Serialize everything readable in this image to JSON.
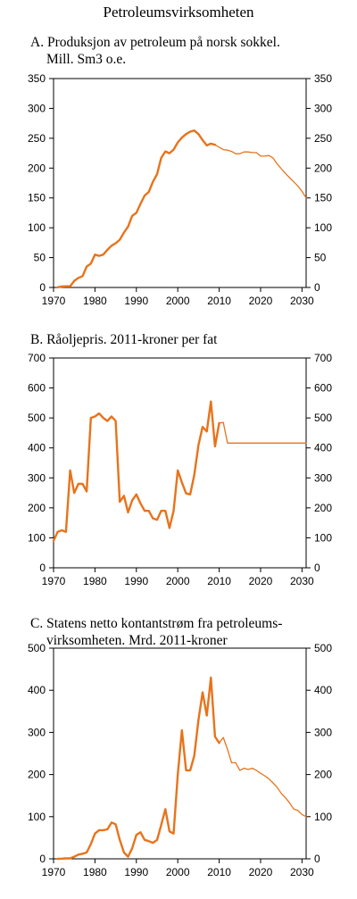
{
  "title": "Petroleumsvirksomheten",
  "colors": {
    "series": "#e8731b",
    "axis": "#000000"
  },
  "chart_data": [
    {
      "type": "line",
      "title_line1": "A. Produksjon av petroleum på norsk sokkel.",
      "title_line2": "Mill. Sm3 o.e.",
      "xlim": [
        1970,
        2031
      ],
      "ylim": [
        0,
        350
      ],
      "xticks": [
        1970,
        1980,
        1990,
        2000,
        2010,
        2020,
        2030
      ],
      "yticks": [
        0,
        50,
        100,
        150,
        200,
        250,
        300,
        350
      ],
      "grid": false,
      "series": [
        {
          "style": "historical",
          "x": [
            1971,
            1972,
            1973,
            1974,
            1975,
            1976,
            1977,
            1978,
            1979,
            1980,
            1981,
            1982,
            1983,
            1984,
            1985,
            1986,
            1987,
            1988,
            1989,
            1990,
            1991,
            1992,
            1993,
            1994,
            1995,
            1996,
            1997,
            1998,
            1999,
            2000,
            2001,
            2002,
            2003,
            2004,
            2005,
            2006,
            2007,
            2008,
            2009
          ],
          "y": [
            0.3,
            1.6,
            1.9,
            1.9,
            11,
            16,
            19,
            35,
            40,
            55,
            53,
            55,
            63,
            70,
            74,
            80,
            92,
            102,
            120,
            125,
            140,
            154,
            160,
            177,
            190,
            217,
            228,
            225,
            231,
            243,
            251,
            257,
            261,
            263,
            257,
            247,
            238,
            241,
            239
          ]
        },
        {
          "style": "projection",
          "x": [
            2009,
            2010,
            2011,
            2012,
            2013,
            2014,
            2015,
            2016,
            2017,
            2018,
            2019,
            2020,
            2021,
            2022,
            2023,
            2024,
            2025,
            2026,
            2027,
            2028,
            2029,
            2030,
            2031
          ],
          "y": [
            239,
            235,
            231,
            230,
            228,
            224,
            224,
            227,
            227,
            226,
            226,
            220,
            220,
            221,
            217,
            207,
            199,
            191,
            184,
            177,
            170,
            161,
            150
          ]
        }
      ]
    },
    {
      "type": "line",
      "title_line1": "B. Råoljepris. 2011-kroner per fat",
      "title_line2": "",
      "xlim": [
        1970,
        2031
      ],
      "ylim": [
        0,
        700
      ],
      "xticks": [
        1970,
        1980,
        1990,
        2000,
        2010,
        2020,
        2030
      ],
      "yticks": [
        0,
        100,
        200,
        300,
        400,
        500,
        600,
        700
      ],
      "grid": false,
      "series": [
        {
          "style": "historical",
          "x": [
            1970,
            1971,
            1972,
            1973,
            1974,
            1975,
            1976,
            1977,
            1978,
            1979,
            1980,
            1981,
            1982,
            1983,
            1984,
            1985,
            1986,
            1987,
            1988,
            1989,
            1990,
            1991,
            1992,
            1993,
            1994,
            1995,
            1996,
            1997,
            1998,
            1999,
            2000,
            2001,
            2002,
            2003,
            2004,
            2005,
            2006,
            2007,
            2008,
            2009,
            2010
          ],
          "y": [
            90,
            120,
            125,
            120,
            325,
            250,
            280,
            280,
            255,
            500,
            505,
            515,
            500,
            490,
            505,
            490,
            220,
            240,
            185,
            225,
            245,
            215,
            190,
            190,
            165,
            160,
            190,
            190,
            133,
            190,
            325,
            285,
            248,
            245,
            310,
            410,
            470,
            455,
            555,
            405,
            483
          ]
        },
        {
          "style": "projection",
          "x": [
            2010,
            2011,
            2012,
            2013,
            2031
          ],
          "y": [
            483,
            485,
            416,
            416,
            416
          ]
        }
      ]
    },
    {
      "type": "line",
      "title_line1": "C. Statens netto kontantstrøm fra petroleums-",
      "title_line2": "virksomheten. Mrd. 2011-kroner",
      "xlim": [
        1970,
        2031
      ],
      "ylim": [
        0,
        500
      ],
      "xticks": [
        1970,
        1980,
        1990,
        2000,
        2010,
        2020,
        2030
      ],
      "yticks": [
        0,
        100,
        200,
        300,
        400,
        500
      ],
      "grid": false,
      "series": [
        {
          "style": "historical",
          "x": [
            1971,
            1972,
            1973,
            1974,
            1975,
            1976,
            1977,
            1978,
            1979,
            1980,
            1981,
            1982,
            1983,
            1984,
            1985,
            1986,
            1987,
            1988,
            1989,
            1990,
            1991,
            1992,
            1993,
            1994,
            1995,
            1996,
            1997,
            1998,
            1999,
            2000,
            2001,
            2002,
            2003,
            2004,
            2005,
            2006,
            2007,
            2008,
            2009,
            2010
          ],
          "y": [
            0,
            0.5,
            1,
            1,
            5,
            10,
            12,
            15,
            35,
            60,
            68,
            68,
            70,
            86,
            82,
            45,
            15,
            5,
            25,
            57,
            63,
            45,
            42,
            38,
            45,
            80,
            118,
            65,
            60,
            200,
            305,
            210,
            210,
            245,
            330,
            395,
            340,
            430,
            290,
            275
          ]
        },
        {
          "style": "projection",
          "x": [
            2010,
            2011,
            2012,
            2013,
            2014,
            2015,
            2016,
            2017,
            2018,
            2019,
            2020,
            2021,
            2022,
            2023,
            2024,
            2025,
            2026,
            2027,
            2028,
            2029,
            2030,
            2031
          ],
          "y": [
            275,
            288,
            260,
            228,
            228,
            210,
            215,
            212,
            215,
            210,
            203,
            197,
            190,
            180,
            170,
            155,
            145,
            133,
            118,
            115,
            105,
            100
          ]
        }
      ]
    }
  ]
}
